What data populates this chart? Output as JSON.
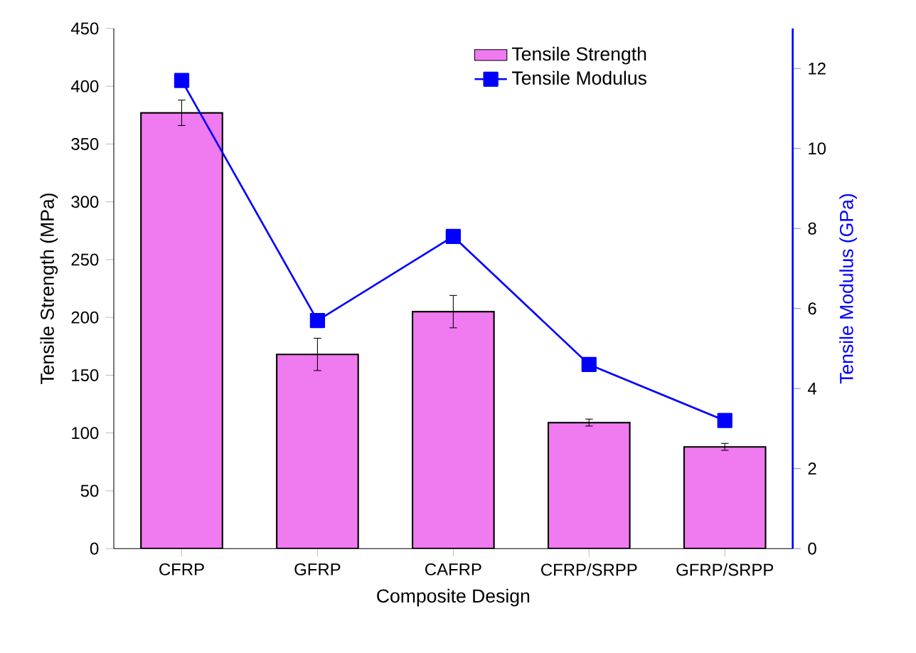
{
  "chart_data": {
    "type": "bar",
    "xlabel": "Composite Design",
    "ylabel": "Tensile Strength (MPa)",
    "y2label": "Tensile Modulus (GPa)",
    "categories": [
      "CFRP",
      "GFRP",
      "CAFRP",
      "CFRP/SRPP",
      "GFRP/SRPP"
    ],
    "series": [
      {
        "name": "Tensile Strength",
        "color": "#f07af0",
        "values": [
          377,
          168,
          205,
          109,
          88
        ],
        "errors": [
          11,
          14,
          14,
          3,
          3
        ]
      },
      {
        "name": "Tensile Modulus",
        "type": "line",
        "axis": "y2",
        "color": "#0000ff",
        "marker": "square",
        "values": [
          11.7,
          5.7,
          7.8,
          4.6,
          3.2
        ]
      }
    ],
    "ylim": [
      0,
      450
    ],
    "yticks": [
      0,
      50,
      100,
      150,
      200,
      250,
      300,
      350,
      400,
      450
    ],
    "y2lim": [
      0,
      13
    ],
    "y2ticks": [
      0,
      2,
      4,
      6,
      8,
      10,
      12
    ],
    "legend": "top right",
    "grid": false
  }
}
